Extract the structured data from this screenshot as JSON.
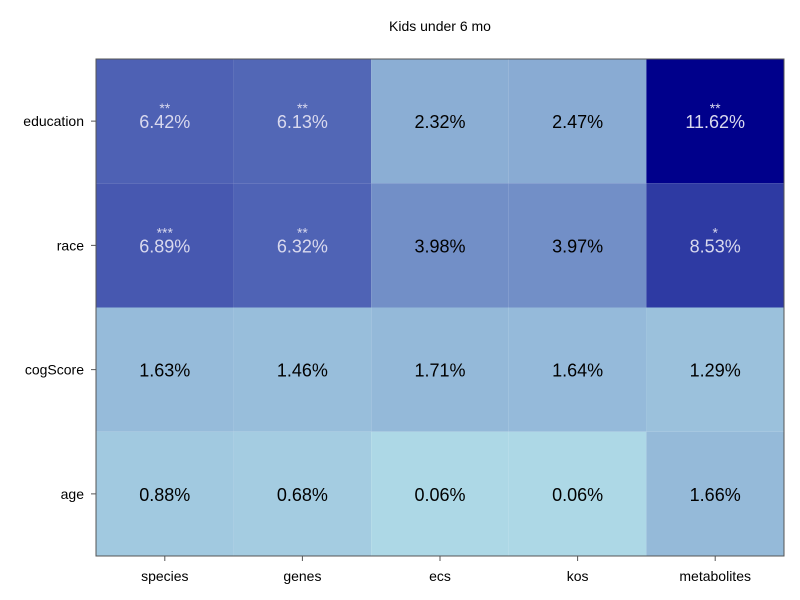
{
  "chart_data": {
    "type": "heatmap",
    "title": "Kids under 6 mo",
    "xlabel": "",
    "ylabel": "",
    "x_categories": [
      "species",
      "genes",
      "ecs",
      "kos",
      "metabolites"
    ],
    "y_categories": [
      "education",
      "race",
      "cogScore",
      "age"
    ],
    "values": [
      [
        6.42,
        6.13,
        2.32,
        2.47,
        11.62
      ],
      [
        6.89,
        6.32,
        3.98,
        3.97,
        8.53
      ],
      [
        1.63,
        1.46,
        1.71,
        1.64,
        1.29
      ],
      [
        0.88,
        0.68,
        0.06,
        0.06,
        1.66
      ]
    ],
    "cell_labels": [
      [
        "6.42%",
        "6.13%",
        "2.32%",
        "2.47%",
        "11.62%"
      ],
      [
        "6.89%",
        "6.32%",
        "3.98%",
        "3.97%",
        "8.53%"
      ],
      [
        "1.63%",
        "1.46%",
        "1.71%",
        "1.64%",
        "1.29%"
      ],
      [
        "0.88%",
        "0.68%",
        "0.06%",
        "0.06%",
        "1.66%"
      ]
    ],
    "significance": [
      [
        "**",
        "**",
        "",
        "",
        "**"
      ],
      [
        "***",
        "**",
        "",
        "",
        "*"
      ],
      [
        "",
        "",
        "",
        "",
        ""
      ],
      [
        "",
        "",
        "",
        "",
        ""
      ]
    ],
    "colormap": [
      "#add8e6",
      "#00008b"
    ],
    "color_range": [
      0.06,
      11.62
    ],
    "grid": false
  }
}
